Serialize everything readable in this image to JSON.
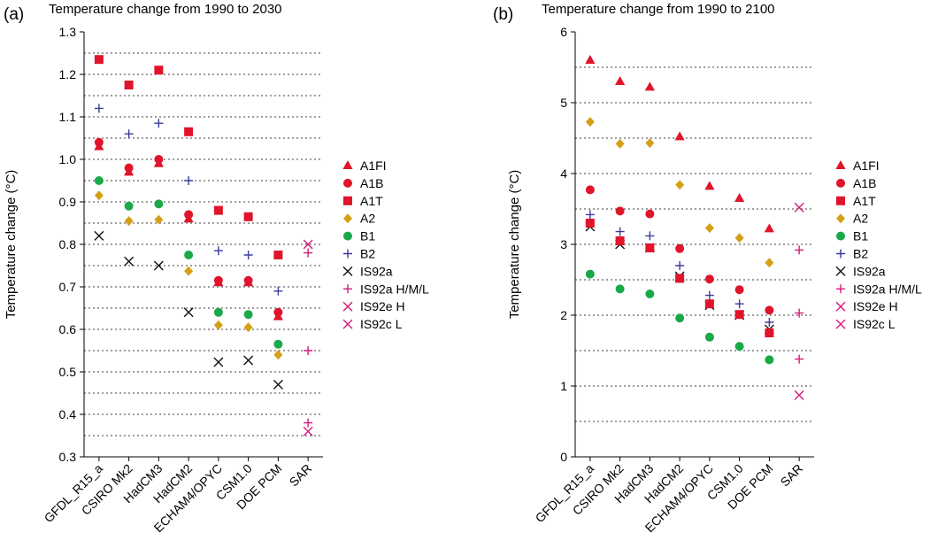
{
  "legend_labels": [
    "A1FI",
    "A1B",
    "A1T",
    "A2",
    "B1",
    "B2",
    "IS92a",
    "IS92a H/M/L",
    "IS92e H",
    "IS92c L"
  ],
  "colors": {
    "A1FI": "#e0142a",
    "A1B": "#e0142a",
    "A1T": "#e0142a",
    "A2": "#d4a017",
    "B1": "#1aa84a",
    "B2": "#3b3b9b",
    "IS92a": "#111111",
    "IS92a H/M/L": "#d6197a",
    "IS92e H": "#d6197a",
    "IS92c L": "#d6197a"
  },
  "markers": {
    "A1FI": "triangle",
    "A1B": "circle",
    "A1T": "square",
    "A2": "diamond",
    "B1": "circle",
    "B2": "plus",
    "IS92a": "x",
    "IS92a H/M/L": "plus",
    "IS92e H": "x",
    "IS92c L": "x"
  },
  "chart_data": [
    {
      "type": "scatter",
      "panel_label": "(a)",
      "title": "Temperature change from 1990 to 2030",
      "ylabel": "Temperature change (°C)",
      "xlabel": "",
      "ylim": [
        0.3,
        1.3
      ],
      "yticks": [
        "0.3",
        "0.4",
        "0.5",
        "0.6",
        "0.7",
        "0.8",
        "0.9",
        "1.0",
        "1.1",
        "1.2",
        "1.3"
      ],
      "grid": "horizontal dotted",
      "legend_position": "right",
      "categories": [
        "GFDL_R15_a",
        "CSIRO Mk2",
        "HadCM3",
        "HadCM2",
        "ECHAM4/OPYC",
        "CSM1.0",
        "DOE PCM",
        "SAR"
      ],
      "series": [
        {
          "name": "A1FI",
          "values": [
            1.03,
            0.97,
            0.99,
            0.86,
            0.71,
            0.71,
            0.63,
            null
          ]
        },
        {
          "name": "A1B",
          "values": [
            1.04,
            0.98,
            1.0,
            0.87,
            0.715,
            0.715,
            0.64,
            null
          ]
        },
        {
          "name": "A1T",
          "values": [
            1.235,
            1.175,
            1.21,
            1.065,
            0.88,
            0.865,
            0.775,
            null
          ]
        },
        {
          "name": "A2",
          "values": [
            0.915,
            0.855,
            0.858,
            0.737,
            0.61,
            0.605,
            0.54,
            null
          ]
        },
        {
          "name": "B1",
          "values": [
            0.95,
            0.89,
            0.895,
            0.775,
            0.64,
            0.635,
            0.565,
            null
          ]
        },
        {
          "name": "B2",
          "values": [
            1.12,
            1.06,
            1.085,
            0.95,
            0.785,
            0.775,
            0.69,
            null
          ]
        },
        {
          "name": "IS92a",
          "values": [
            0.82,
            0.76,
            0.75,
            0.64,
            0.523,
            0.527,
            0.47,
            null
          ]
        },
        {
          "name": "IS92a H/M/L",
          "values": [
            null,
            null,
            null,
            null,
            null,
            null,
            null,
            [
              0.78,
              0.55,
              0.38
            ]
          ]
        },
        {
          "name": "IS92e H",
          "values": [
            null,
            null,
            null,
            null,
            null,
            null,
            null,
            0.8
          ]
        },
        {
          "name": "IS92c L",
          "values": [
            null,
            null,
            null,
            null,
            null,
            null,
            null,
            0.36
          ]
        }
      ]
    },
    {
      "type": "scatter",
      "panel_label": "(b)",
      "title": "Temperature change from 1990 to 2100",
      "ylabel": "Temperature change (°C)",
      "xlabel": "",
      "ylim": [
        0,
        6
      ],
      "yticks": [
        "0",
        "1",
        "2",
        "3",
        "4",
        "5",
        "6"
      ],
      "grid": "horizontal dotted",
      "legend_position": "right",
      "categories": [
        "GFDL_R15_a",
        "CSIRO Mk2",
        "HadCM3",
        "HadCM2",
        "ECHAM4/OPYC",
        "CSM1.0",
        "DOE PCM",
        "SAR"
      ],
      "series": [
        {
          "name": "A1FI",
          "values": [
            5.6,
            5.3,
            5.22,
            4.52,
            3.82,
            3.65,
            3.22,
            null
          ]
        },
        {
          "name": "A1B",
          "values": [
            3.77,
            3.47,
            3.43,
            2.94,
            2.51,
            2.36,
            2.07,
            null
          ]
        },
        {
          "name": "A1T",
          "values": [
            3.3,
            3.05,
            2.95,
            2.52,
            2.16,
            2.01,
            1.75,
            null
          ]
        },
        {
          "name": "A2",
          "values": [
            4.73,
            4.42,
            4.43,
            3.84,
            3.23,
            3.09,
            2.74,
            null
          ]
        },
        {
          "name": "B1",
          "values": [
            2.58,
            2.37,
            2.3,
            1.96,
            1.69,
            1.56,
            1.37,
            null
          ]
        },
        {
          "name": "B2",
          "values": [
            3.42,
            3.18,
            3.12,
            2.7,
            2.28,
            2.16,
            1.9,
            null
          ]
        },
        {
          "name": "IS92a",
          "values": [
            3.25,
            3.0,
            2.95,
            2.55,
            2.14,
            2.0,
            1.8,
            null
          ]
        },
        {
          "name": "IS92a H/M/L",
          "values": [
            null,
            null,
            null,
            null,
            null,
            null,
            null,
            [
              2.92,
              2.03,
              1.38
            ]
          ]
        },
        {
          "name": "IS92e H",
          "values": [
            null,
            null,
            null,
            null,
            null,
            null,
            null,
            3.52
          ]
        },
        {
          "name": "IS92c L",
          "values": [
            null,
            null,
            null,
            null,
            null,
            null,
            null,
            0.87
          ]
        }
      ]
    }
  ]
}
